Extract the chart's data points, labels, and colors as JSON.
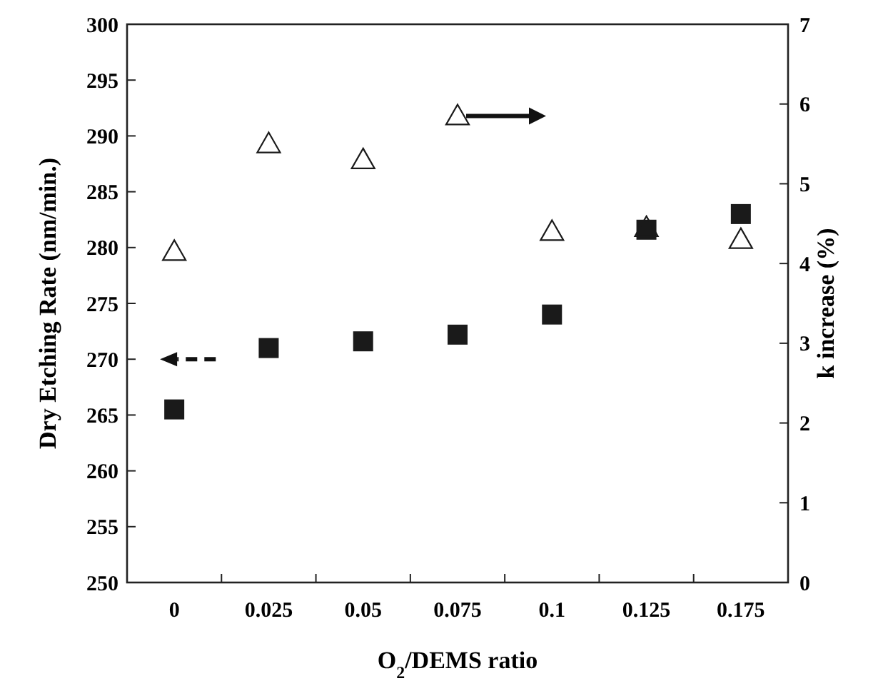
{
  "chart_data": {
    "type": "scatter",
    "xlabel": "O$_{2}$/DEMS ratio",
    "ylabel": "Dry Etching Rate (nm/min.)",
    "y2label": "k increase (%)",
    "categories": [
      "0",
      "0.025",
      "0.05",
      "0.075",
      "0.1",
      "0.125",
      "0.175"
    ],
    "series": [
      {
        "color": "#1a1a1a",
        "marker": "square",
        "values": [
          265.5,
          271,
          271.6,
          272.2,
          274,
          281.6,
          283
        ]
      },
      {
        "color": "#1a1a1a",
        "marker": "triangle",
        "axis": "y2",
        "values": [
          4.15,
          5.5,
          5.3,
          5.85,
          4.4,
          4.45,
          4.3
        ]
      }
    ],
    "ylim": [
      250,
      300
    ],
    "yticks": [
      250,
      255,
      260,
      265,
      270,
      275,
      280,
      285,
      290,
      295,
      300
    ],
    "y2lim": [
      0,
      7
    ],
    "y2ticks": [
      0,
      1,
      2,
      3,
      4,
      5,
      6,
      7
    ],
    "grid": false
  }
}
